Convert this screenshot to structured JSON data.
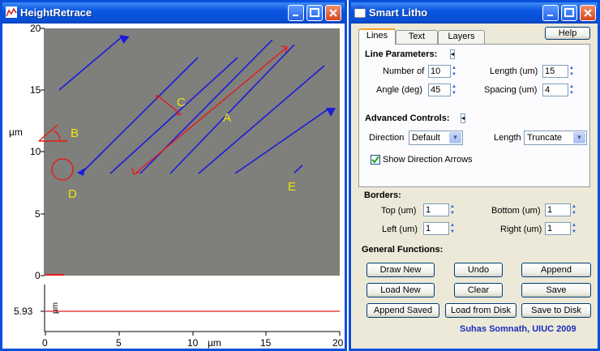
{
  "plot_window": {
    "title": "HeightRetrace",
    "y_axis_label": "µm",
    "x_axis_label": "µm",
    "y_ticks": [
      "20",
      "15",
      "10",
      "5",
      "0"
    ],
    "x_ticks": [
      "0",
      "5",
      "10",
      "15",
      "20"
    ],
    "annotations": [
      "A",
      "B",
      "C",
      "D",
      "E"
    ],
    "profile_value": "5.93",
    "profile_unit": "µm",
    "colors": {
      "plot_bg": "#7f7f7b",
      "lines": "#1b1bde",
      "annot_red": "#e51b1b",
      "annot_text": "#f0e60c"
    }
  },
  "litho_window": {
    "title": "Smart Litho",
    "tabs": [
      "Lines",
      "Text",
      "Layers"
    ],
    "help_label": "Help",
    "line_params": {
      "heading": "Line Parameters:",
      "number_label": "Number of",
      "number_value": "10",
      "length_label": "Length (um)",
      "length_value": "15",
      "angle_label": "Angle (deg)",
      "angle_value": "45",
      "spacing_label": "Spacing (um)",
      "spacing_value": "4"
    },
    "advanced": {
      "heading": "Advanced Controls:",
      "direction_label": "Direction",
      "direction_value": "Default",
      "length_label": "Length",
      "length_value": "Truncate",
      "arrows_label": "Show Direction Arrows"
    },
    "borders": {
      "heading": "Borders:",
      "top_label": "Top (um)",
      "top_value": "1",
      "bottom_label": "Bottom (um)",
      "bottom_value": "1",
      "left_label": "Left (um)",
      "left_value": "1",
      "right_label": "Right (um)",
      "right_value": "1"
    },
    "general": {
      "heading": "General Functions:",
      "draw_new": "Draw New",
      "undo": "Undo",
      "append": "Append",
      "load_new": "Load New",
      "clear": "Clear",
      "save": "Save",
      "append_saved": "Append Saved",
      "load_from_disk": "Load from Disk",
      "save_to_disk": "Save to Disk"
    },
    "credit": "Suhas Somnath, UIUC 2009"
  }
}
